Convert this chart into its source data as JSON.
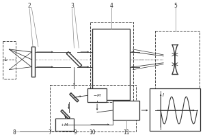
{
  "bg_color": "#ffffff",
  "lc": "#333333",
  "figsize": [
    3.0,
    2.0
  ],
  "dpi": 100
}
